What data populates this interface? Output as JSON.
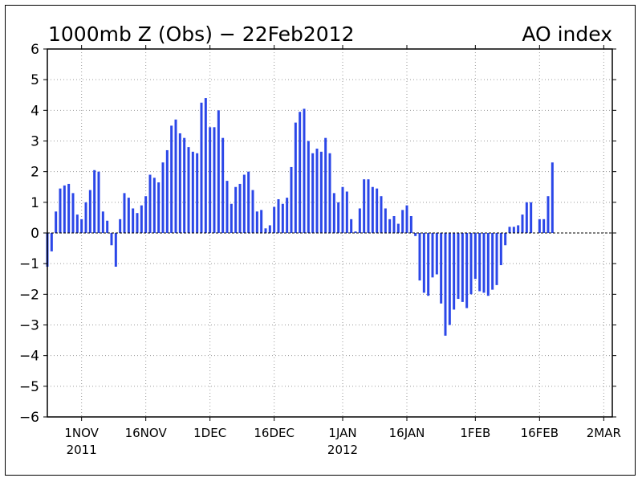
{
  "chart_data": {
    "type": "bar",
    "title": "1000mb Z (Obs) − 22Feb2012",
    "subtitle": "AO index",
    "xlabel": "",
    "ylabel": "",
    "x_range": [
      "2011-10-24",
      "2012-03-04"
    ],
    "ylim": [
      -6,
      6
    ],
    "y_ticks": [
      6,
      5,
      4,
      3,
      2,
      1,
      0,
      -1,
      -2,
      -3,
      -4,
      -5,
      -6
    ],
    "y_tick_labels": [
      "6",
      "5",
      "4",
      "3",
      "2",
      "1",
      "0",
      "−1",
      "−2",
      "−3",
      "−4",
      "−5",
      "−6"
    ],
    "x_ticks": [
      {
        "date": "2011-11-01",
        "label": "1NOV",
        "sublabel": "2011"
      },
      {
        "date": "2011-11-16",
        "label": "16NOV",
        "sublabel": ""
      },
      {
        "date": "2011-12-01",
        "label": "1DEC",
        "sublabel": ""
      },
      {
        "date": "2011-12-16",
        "label": "16DEC",
        "sublabel": ""
      },
      {
        "date": "2012-01-01",
        "label": "1JAN",
        "sublabel": "2012"
      },
      {
        "date": "2012-01-16",
        "label": "16JAN",
        "sublabel": ""
      },
      {
        "date": "2012-02-01",
        "label": "1FEB",
        "sublabel": ""
      },
      {
        "date": "2012-02-16",
        "label": "16FEB",
        "sublabel": ""
      },
      {
        "date": "2012-03-02",
        "label": "2MAR",
        "sublabel": ""
      }
    ],
    "grid": true,
    "zero_line": true,
    "bar_color": "#2b47e8",
    "series": [
      {
        "start_date": "2011-10-24",
        "values": [
          -1.1,
          -0.6,
          0.7,
          1.45,
          1.55,
          1.6,
          1.3,
          0.6,
          0.45,
          1.0,
          1.4,
          2.05,
          2.0,
          0.7,
          0.4,
          -0.4,
          -1.1,
          0.45,
          1.3,
          1.15,
          0.8,
          0.65,
          0.9,
          1.2,
          1.9,
          1.8,
          1.65,
          2.3,
          2.7,
          3.5,
          3.7,
          3.25,
          3.1,
          2.8,
          2.65,
          2.6,
          4.25,
          4.4,
          3.45,
          3.45,
          4.0,
          3.1,
          1.7,
          0.95,
          1.5,
          1.6,
          1.9,
          2.0,
          1.4,
          0.7,
          0.75,
          0.15,
          0.25,
          0.85,
          1.1,
          0.95,
          1.15,
          2.15,
          3.6,
          3.95,
          4.05,
          3.0,
          2.6,
          2.75,
          2.65,
          3.1,
          2.6,
          1.3,
          1.0,
          1.5,
          1.35,
          0.45,
          0.05,
          0.8,
          1.75,
          1.75,
          1.5,
          1.45,
          1.2,
          0.8,
          0.45,
          0.55,
          0.3,
          0.75,
          0.9,
          0.55,
          -0.1,
          -1.55,
          -1.95,
          -2.05,
          -1.45,
          -1.35,
          -2.3,
          -3.35,
          -3.0,
          -2.5,
          -2.15,
          -2.25,
          -2.45,
          -2.0,
          -1.5,
          -1.9,
          -1.95,
          -2.05,
          -1.85,
          -1.7,
          -1.05,
          -0.4,
          0.2,
          0.2,
          0.25,
          0.6,
          1.0,
          1.0,
          0.0,
          0.45,
          0.45,
          1.2,
          2.3
        ]
      }
    ]
  }
}
